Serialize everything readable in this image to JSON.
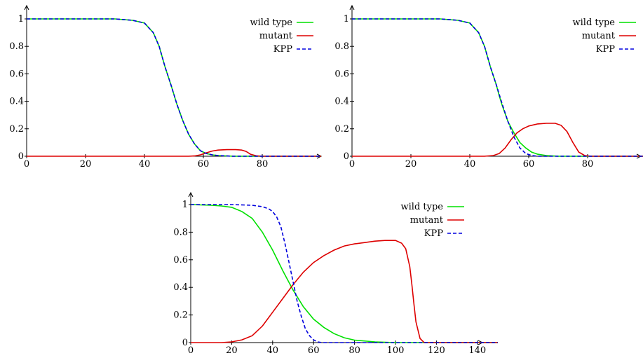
{
  "chart_data": [
    {
      "type": "line",
      "xlim": [
        0,
        100
      ],
      "ylim": [
        0,
        1
      ],
      "x_ticks": [
        0,
        20,
        40,
        60,
        80
      ],
      "y_ticks": [
        0,
        0.2,
        0.4,
        0.6,
        0.8,
        1
      ],
      "legend_position": "top-right",
      "series": [
        {
          "name": "wild type",
          "color": "#00e000",
          "dash": "solid",
          "x": [
            0,
            10,
            20,
            30,
            36,
            40,
            43,
            45,
            47,
            49,
            50,
            51,
            53,
            55,
            57,
            59,
            61,
            63,
            65,
            70,
            80,
            100
          ],
          "y": [
            1,
            1,
            1,
            1,
            0.99,
            0.97,
            0.9,
            0.8,
            0.65,
            0.52,
            0.45,
            0.38,
            0.26,
            0.16,
            0.09,
            0.04,
            0.02,
            0.01,
            0.005,
            0,
            0,
            0
          ]
        },
        {
          "name": "mutant",
          "color": "#dd0000",
          "dash": "solid",
          "x": [
            0,
            50,
            55,
            57,
            59,
            61,
            63,
            65,
            68,
            71,
            73,
            74.5,
            76,
            78,
            80,
            100
          ],
          "y": [
            0,
            0,
            0,
            0.002,
            0.01,
            0.025,
            0.038,
            0.045,
            0.048,
            0.048,
            0.045,
            0.035,
            0.015,
            0.003,
            0,
            0
          ]
        },
        {
          "name": "KPP",
          "color": "#0000dd",
          "dash": "dashed",
          "x": [
            0,
            10,
            20,
            30,
            36,
            40,
            43,
            45,
            47,
            49,
            50,
            51,
            53,
            55,
            57,
            59,
            61,
            63,
            65,
            70,
            80,
            100
          ],
          "y": [
            1,
            1,
            1,
            1,
            0.99,
            0.97,
            0.9,
            0.8,
            0.65,
            0.52,
            0.45,
            0.38,
            0.26,
            0.16,
            0.09,
            0.04,
            0.02,
            0.01,
            0.005,
            0,
            0,
            0
          ]
        }
      ]
    },
    {
      "type": "line",
      "xlim": [
        0,
        100
      ],
      "ylim": [
        0,
        1
      ],
      "x_ticks": [
        0,
        20,
        40,
        60,
        80
      ],
      "y_ticks": [
        0,
        0.2,
        0.4,
        0.6,
        0.8,
        1
      ],
      "legend_position": "top-right",
      "series": [
        {
          "name": "wild type",
          "color": "#00e000",
          "dash": "solid",
          "x": [
            0,
            10,
            20,
            30,
            36,
            40,
            43,
            45,
            47,
            49,
            50,
            51,
            53,
            55,
            57,
            59,
            61,
            63,
            66,
            70,
            80,
            100
          ],
          "y": [
            1,
            1,
            1,
            1,
            0.99,
            0.97,
            0.9,
            0.8,
            0.65,
            0.52,
            0.44,
            0.37,
            0.25,
            0.17,
            0.1,
            0.06,
            0.03,
            0.015,
            0.005,
            0,
            0,
            0
          ]
        },
        {
          "name": "mutant",
          "color": "#dd0000",
          "dash": "solid",
          "x": [
            0,
            45,
            48,
            50,
            52,
            54,
            56,
            58,
            60,
            63,
            66,
            69,
            71,
            73,
            75,
            77,
            79,
            81,
            100
          ],
          "y": [
            0,
            0,
            0.005,
            0.02,
            0.06,
            0.12,
            0.17,
            0.2,
            0.22,
            0.235,
            0.24,
            0.24,
            0.225,
            0.18,
            0.1,
            0.03,
            0.005,
            0,
            0
          ]
        },
        {
          "name": "KPP",
          "color": "#0000dd",
          "dash": "dashed",
          "x": [
            0,
            10,
            20,
            30,
            36,
            40,
            43,
            45,
            47,
            49,
            50,
            51,
            53,
            55,
            57,
            59,
            61,
            63,
            65,
            70,
            80,
            100
          ],
          "y": [
            1,
            1,
            1,
            1,
            0.99,
            0.97,
            0.9,
            0.8,
            0.65,
            0.52,
            0.45,
            0.38,
            0.25,
            0.14,
            0.06,
            0.02,
            0.005,
            0,
            0,
            0,
            0,
            0
          ]
        }
      ]
    },
    {
      "type": "line",
      "xlim": [
        0,
        150
      ],
      "ylim": [
        0,
        1
      ],
      "x_ticks": [
        0,
        20,
        40,
        60,
        80,
        100,
        120,
        140
      ],
      "y_ticks": [
        0,
        0.2,
        0.4,
        0.6,
        0.8,
        1
      ],
      "legend_position": "top-right",
      "series": [
        {
          "name": "wild type",
          "color": "#00e000",
          "dash": "solid",
          "x": [
            0,
            10,
            15,
            20,
            25,
            30,
            35,
            40,
            45,
            50,
            55,
            60,
            65,
            70,
            75,
            80,
            90,
            100,
            110,
            150
          ],
          "y": [
            1,
            0.995,
            0.99,
            0.98,
            0.95,
            0.9,
            0.8,
            0.67,
            0.52,
            0.38,
            0.26,
            0.17,
            0.11,
            0.065,
            0.035,
            0.018,
            0.005,
            0,
            0,
            0
          ]
        },
        {
          "name": "mutant",
          "color": "#dd0000",
          "dash": "solid",
          "x": [
            0,
            15,
            20,
            25,
            30,
            35,
            40,
            45,
            50,
            55,
            60,
            65,
            70,
            75,
            80,
            85,
            90,
            95,
            100,
            103,
            105,
            107,
            108,
            109,
            110,
            112,
            114,
            150
          ],
          "y": [
            0,
            0,
            0.005,
            0.02,
            0.05,
            0.12,
            0.22,
            0.32,
            0.42,
            0.51,
            0.58,
            0.63,
            0.67,
            0.7,
            0.715,
            0.725,
            0.735,
            0.74,
            0.74,
            0.72,
            0.68,
            0.55,
            0.42,
            0.28,
            0.15,
            0.03,
            0,
            0
          ]
        },
        {
          "name": "KPP",
          "color": "#0000dd",
          "dash": "dashed",
          "x": [
            0,
            20,
            30,
            35,
            38,
            40,
            42,
            44,
            46,
            48,
            50,
            52,
            54,
            56,
            58,
            60,
            62,
            64,
            70,
            150
          ],
          "y": [
            1,
            1,
            0.995,
            0.985,
            0.97,
            0.95,
            0.91,
            0.84,
            0.72,
            0.58,
            0.44,
            0.3,
            0.19,
            0.1,
            0.05,
            0.02,
            0.005,
            0,
            0,
            0
          ]
        }
      ]
    }
  ]
}
